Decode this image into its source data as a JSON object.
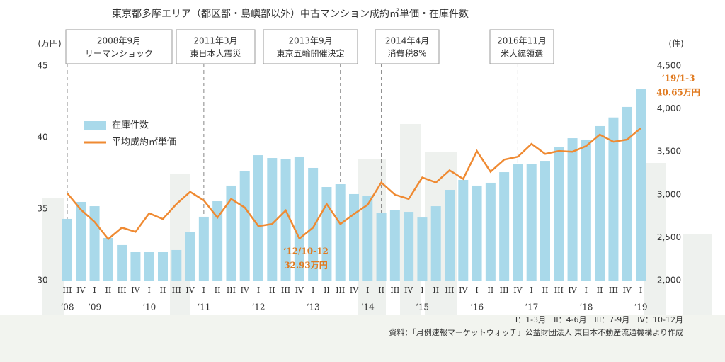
{
  "chart_data": {
    "type": "combo",
    "title": "東京都多摩エリア（都区部・島嶼部以外）中古マンション成約㎡単価・在庫件数",
    "y_label": "(万円)",
    "y2_label": "(件)",
    "categories": [
      "III",
      "IV",
      "I",
      "II",
      "III",
      "IV",
      "I",
      "II",
      "III",
      "IV",
      "I",
      "II",
      "III",
      "IV",
      "I",
      "II",
      "III",
      "IV",
      "I",
      "II",
      "III",
      "IV",
      "I",
      "II",
      "III",
      "IV",
      "I",
      "II",
      "III",
      "IV",
      "I",
      "II",
      "III",
      "IV",
      "I",
      "II",
      "III",
      "IV",
      "I",
      "II",
      "III",
      "IV",
      "I"
    ],
    "year_labels": [
      "‘08",
      null,
      "‘09",
      null,
      null,
      null,
      "‘10",
      null,
      null,
      null,
      "‘11",
      null,
      null,
      null,
      "‘12",
      null,
      null,
      null,
      "‘13",
      null,
      null,
      null,
      "‘14",
      null,
      null,
      null,
      "‘15",
      null,
      null,
      null,
      "‘16",
      null,
      null,
      null,
      "‘17",
      null,
      null,
      null,
      "‘18",
      null,
      null,
      null,
      "‘19"
    ],
    "series": [
      {
        "name": "在庫件数",
        "type": "bar",
        "axis": "y2",
        "color": "#a9d9ea",
        "values": [
          2718,
          2916,
          2866,
          2495,
          2413,
          2330,
          2330,
          2330,
          2355,
          2561,
          2743,
          2924,
          3106,
          3279,
          3460,
          3427,
          3411,
          3444,
          3312,
          3089,
          3122,
          3007,
          2990,
          2784,
          2817,
          2800,
          2734,
          2866,
          3056,
          3172,
          3106,
          3139,
          3262,
          3353,
          3361,
          3394,
          3559,
          3658,
          3642,
          3799,
          3900,
          4022,
          4228
        ]
      },
      {
        "name": "平均成約㎡単価",
        "type": "line",
        "color": "#ef8a32",
        "values": [
          36.1,
          34.95,
          34.1,
          32.9,
          33.7,
          33.4,
          34.7,
          34.3,
          35.35,
          36.2,
          35.6,
          34.4,
          35.7,
          35.1,
          33.8,
          33.95,
          34.9,
          32.93,
          33.7,
          35.35,
          33.95,
          34.65,
          35.3,
          36.85,
          36.0,
          35.7,
          37.2,
          36.85,
          37.7,
          37.1,
          39.05,
          37.6,
          38.45,
          38.65,
          39.55,
          38.85,
          39.05,
          39.0,
          39.4,
          40.2,
          39.7,
          39.85,
          40.65
        ]
      }
    ],
    "ylim": [
      30,
      45
    ],
    "yticks": [
      30,
      35,
      40,
      45
    ],
    "y2lim": [
      2000,
      4500
    ],
    "y2ticks": [
      {
        "value": 2000,
        "label": "2,000"
      },
      {
        "value": 2500,
        "label": "2,500"
      },
      {
        "value": 3000,
        "label": "3,000"
      },
      {
        "value": 3500,
        "label": "3,500"
      },
      {
        "value": 4000,
        "label": "4,000"
      },
      {
        "value": 4500,
        "label": "4,500"
      }
    ],
    "events": [
      {
        "date": "2008年9月",
        "label": "リーマンショック"
      },
      {
        "date": "2011年3月",
        "label": "東日本大震災"
      },
      {
        "date": "2013年9月",
        "label": "東京五輪開催決定"
      },
      {
        "date": "2014年4月",
        "label": "消費税8%"
      },
      {
        "date": "2016年11月",
        "label": "米大統領選"
      }
    ],
    "annotations": [
      {
        "lines": [
          "‘12/10-12",
          "32.93万円"
        ]
      },
      {
        "lines": [
          "‘19/1-3",
          "40.65万円"
        ]
      }
    ],
    "quarter_key": "I：1-3月　II：4-6月　III：7-9月　IV：10-12月",
    "source": "資料：「月例速報マーケットウォッチ」公益財団法人 東日本不動産流通機構より作成"
  }
}
